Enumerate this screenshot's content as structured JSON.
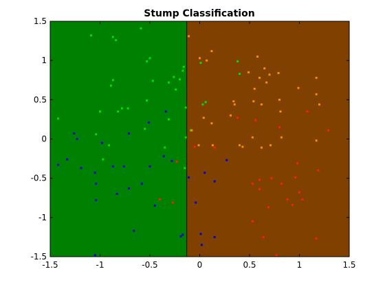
{
  "chart_data": {
    "type": "scatter",
    "title": "Stump Classification",
    "xlim": [
      -1.5,
      1.5
    ],
    "ylim": [
      -1.5,
      1.5
    ],
    "xticks": [
      -1.5,
      -1,
      -0.5,
      0,
      0.5,
      1,
      1.5
    ],
    "yticks": [
      -1.5,
      -1,
      -0.5,
      0,
      0.5,
      1,
      1.5
    ],
    "threshold": -0.13,
    "region_colors": [
      "#008000",
      "#7f4000"
    ],
    "series": [
      {
        "color": "#00e000",
        "x": [
          -1.09,
          -0.87,
          -0.84,
          -0.59,
          -1.42,
          -1.0,
          -0.89,
          -0.87,
          -0.82,
          -0.78,
          -0.72,
          -0.53,
          -0.5,
          -0.47,
          -0.53,
          -0.31,
          -0.26,
          -0.2,
          -0.17,
          -0.16,
          -0.24,
          -0.35,
          -0.14,
          -1.04,
          -0.91,
          -0.97,
          -0.55,
          -0.31,
          -0.14,
          0.01,
          0.03,
          0.06,
          0.38,
          0.4,
          -0.15,
          -0.09
        ],
        "y": [
          1.32,
          1.3,
          1.26,
          1.41,
          0.26,
          0.35,
          0.68,
          0.75,
          0.35,
          0.39,
          0.39,
          0.99,
          1.03,
          0.74,
          0.49,
          0.72,
          0.79,
          0.76,
          0.87,
          0.92,
          0.63,
          -0.11,
          0.4,
          0.06,
          -0.08,
          -0.26,
          0.13,
          0.25,
          0.02,
          0.97,
          0.44,
          0.47,
          0.99,
          0.83,
          -0.37,
          0.11
        ]
      },
      {
        "color": "#0000c8",
        "x": [
          -1.26,
          -1.23,
          -1.33,
          -1.42,
          -1.19,
          -1.05,
          -1.04,
          -1.04,
          -0.98,
          -0.87,
          -0.83,
          -0.76,
          -0.71,
          -0.71,
          -0.58,
          -0.51,
          -0.5,
          -0.45,
          -0.34,
          -0.36,
          -0.28,
          -0.17,
          -0.19,
          -0.66,
          -1.05,
          -0.11,
          -0.04,
          0.05,
          0.01,
          0.02,
          0.15,
          0.15,
          0.27
        ],
        "y": [
          0.07,
          0.0,
          -0.26,
          -0.33,
          -0.37,
          -0.43,
          -0.57,
          -0.78,
          -0.05,
          -0.35,
          -0.7,
          -0.35,
          0.07,
          -0.63,
          -0.57,
          0.21,
          -0.35,
          -0.85,
          0.35,
          -0.22,
          -0.28,
          -1.22,
          -1.24,
          -1.17,
          -1.48,
          -0.49,
          -0.81,
          -0.43,
          -1.21,
          -1.35,
          -0.54,
          -1.25,
          -0.27
        ]
      },
      {
        "color": "#ff8c00",
        "x": [
          -0.11,
          0.0,
          0.07,
          0.12,
          0.12,
          0.04,
          0.49,
          0.55,
          0.58,
          0.6,
          0.65,
          0.67,
          0.7,
          0.79,
          0.34,
          0.35,
          0.54,
          0.62,
          0.8,
          0.81,
          0.99,
          1.17,
          1.17,
          1.2,
          0.31,
          0.4,
          0.43,
          0.13,
          -0.01,
          -0.08,
          0.53,
          0.71,
          0.82,
          1.17,
          0.62
        ],
        "y": [
          1.31,
          1.03,
          1.0,
          1.12,
          0.2,
          0.27,
          0.85,
          0.64,
          1.05,
          0.78,
          0.9,
          0.72,
          0.82,
          0.84,
          0.48,
          0.44,
          0.48,
          0.44,
          0.5,
          0.35,
          0.65,
          0.78,
          0.57,
          0.44,
          0.3,
          -0.08,
          -0.1,
          -0.08,
          -0.08,
          0.11,
          0.02,
          -0.08,
          0.02,
          -0.02,
          -0.11
        ]
      },
      {
        "color": "#ff2000",
        "x": [
          -0.23,
          -0.27,
          -0.4,
          -0.05,
          0.38,
          0.56,
          0.8,
          1.08,
          1.29,
          1.19,
          0.98,
          0.53,
          0.6,
          0.6,
          0.53,
          0.69,
          0.72,
          0.82,
          0.88,
          0.93,
          1.0,
          1.03,
          1.17,
          0.77,
          0.64,
          0.15,
          0.96
        ],
        "y": [
          -0.29,
          -0.81,
          -0.77,
          -0.1,
          0.27,
          0.24,
          0.15,
          0.35,
          0.11,
          -0.4,
          -0.31,
          -0.57,
          -0.52,
          -0.64,
          -1.05,
          -0.87,
          -0.5,
          -0.57,
          -0.77,
          -0.84,
          -0.68,
          -0.77,
          -1.27,
          -1.48,
          -1.25,
          -0.11,
          -0.49
        ]
      }
    ]
  }
}
